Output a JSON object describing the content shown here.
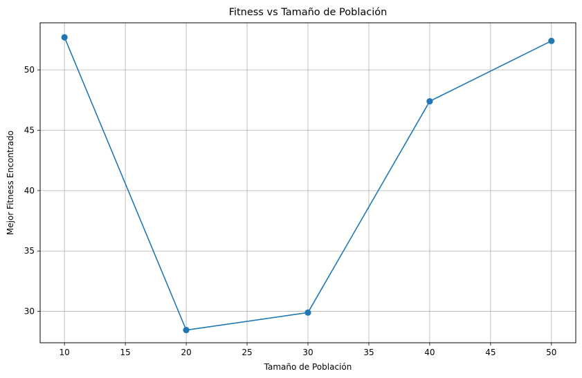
{
  "chart_data": {
    "type": "line",
    "title": "Fitness vs Tamaño de Población",
    "xlabel": "Tamaño de Población",
    "ylabel": "Mejor Fitness Encontrado",
    "x": [
      10,
      20,
      30,
      40,
      50
    ],
    "series": [
      {
        "values": [
          52.7,
          28.45,
          29.9,
          47.4,
          52.4
        ],
        "color": "#1f77b4",
        "marker": "circle"
      }
    ],
    "xlim": [
      8,
      52
    ],
    "ylim": [
      27.4,
      53.9
    ],
    "xticks": [
      10,
      15,
      20,
      25,
      30,
      35,
      40,
      45,
      50
    ],
    "yticks": [
      30,
      35,
      40,
      45,
      50
    ],
    "grid": true
  }
}
